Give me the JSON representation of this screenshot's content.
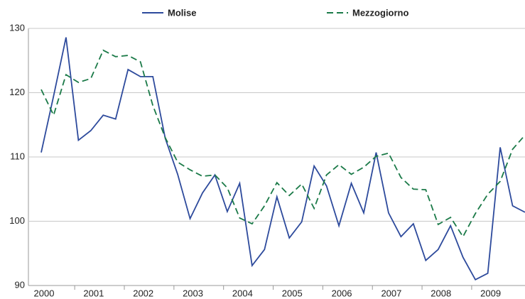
{
  "chart_data": {
    "type": "line",
    "categories": [
      "2000",
      null,
      null,
      null,
      "2001",
      null,
      null,
      null,
      "2002",
      null,
      null,
      null,
      "2003",
      null,
      null,
      null,
      "2004",
      null,
      null,
      null,
      "2005",
      null,
      null,
      null,
      "2006",
      null,
      null,
      null,
      "2007",
      null,
      null,
      null,
      "2008",
      null,
      null,
      null,
      "2009",
      null,
      null,
      null
    ],
    "series": [
      {
        "name": "Molise",
        "color": "#2d4a9c",
        "dashed": false,
        "values": [
          110.7,
          119.5,
          128.6,
          112.6,
          114.1,
          116.5,
          115.9,
          123.6,
          122.5,
          122.5,
          112.9,
          107.3,
          100.4,
          104.4,
          107.2,
          101.5,
          105.9,
          93.1,
          95.6,
          103.8,
          97.4,
          99.9,
          108.6,
          105.5,
          99.3,
          105.9,
          101.3,
          110.7,
          101.3,
          97.6,
          99.6,
          93.9,
          95.6,
          99.3,
          94.4,
          90.9,
          91.9,
          111.5,
          102.4,
          101.4
        ]
      },
      {
        "name": "Mezzogiorno",
        "color": "#1b7a48",
        "dashed": true,
        "values": [
          120.5,
          116.5,
          122.8,
          121.6,
          122.2,
          126.6,
          125.6,
          125.8,
          124.8,
          118,
          113,
          109.2,
          108,
          107,
          107.2,
          105.2,
          100.5,
          99.6,
          102.4,
          106,
          104,
          105.8,
          102,
          107.2,
          108.8,
          107.3,
          108.4,
          110.1,
          110.6,
          106.8,
          105,
          104.9,
          99.5,
          100.6,
          97.6,
          101.2,
          104.2,
          106.2,
          111.2,
          113.4
        ]
      }
    ],
    "ylim": [
      90,
      130
    ],
    "yticks": [
      90,
      100,
      110,
      120,
      130
    ],
    "grid": true
  }
}
